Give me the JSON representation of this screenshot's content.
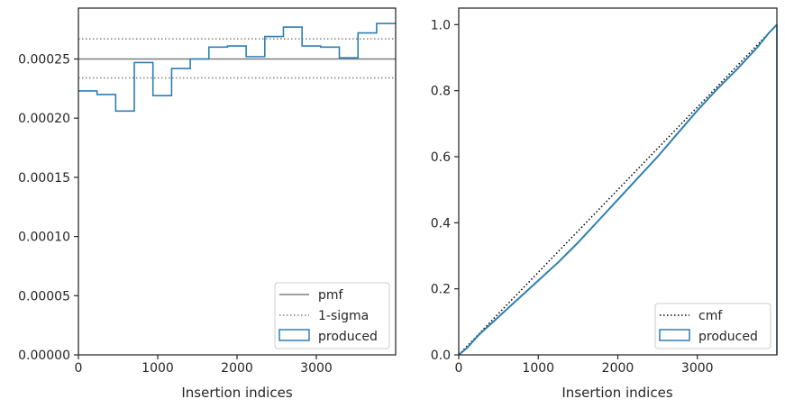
{
  "colors": {
    "produced": "#2f7fb2",
    "reference": "#7f7f7f",
    "cmf": "#000000",
    "axes": "#262626"
  },
  "chart_data": [
    {
      "type": "step-histogram",
      "xlabel": "Insertion indices",
      "ylabel": "",
      "xlim": [
        0,
        4000
      ],
      "ylim": [
        0,
        0.000293
      ],
      "xticks": [
        0,
        1000,
        2000,
        3000
      ],
      "xtick_labels": [
        "0",
        "1000",
        "2000",
        "3000"
      ],
      "yticks": [
        0,
        5e-05,
        0.0001,
        0.00015,
        0.0002,
        0.00025
      ],
      "ytick_labels": [
        "0.00000",
        "0.00005",
        "0.00010",
        "0.00015",
        "0.00020",
        "0.00025"
      ],
      "grid": false,
      "legend_position": "lower-right",
      "pmf": 0.00025,
      "sigma_upper": 0.000267,
      "sigma_lower": 0.000234,
      "bin_edges": [
        0,
        235,
        470,
        705,
        940,
        1175,
        1410,
        1645,
        1880,
        2115,
        2350,
        2585,
        2820,
        3055,
        3290,
        3525,
        3760,
        4000
      ],
      "counts": [
        0.000223,
        0.00022,
        0.000206,
        0.000247,
        0.000219,
        0.000242,
        0.00025,
        0.00026,
        0.000261,
        0.000252,
        0.000269,
        0.000277,
        0.000261,
        0.00026,
        0.000251,
        0.000272,
        0.00028
      ],
      "legend": [
        "pmf",
        "1-sigma",
        "produced"
      ]
    },
    {
      "type": "line",
      "xlabel": "Insertion indices",
      "ylabel": "",
      "xlim": [
        0,
        4000
      ],
      "ylim": [
        0,
        1.05
      ],
      "xticks": [
        0,
        1000,
        2000,
        3000
      ],
      "xtick_labels": [
        "0",
        "1000",
        "2000",
        "3000"
      ],
      "yticks": [
        0,
        0.2,
        0.4,
        0.6,
        0.8,
        1.0
      ],
      "ytick_labels": [
        "0.0",
        "0.2",
        "0.4",
        "0.6",
        "0.8",
        "1.0"
      ],
      "grid": false,
      "legend_position": "lower-right",
      "cmf": {
        "x": [
          0,
          4000
        ],
        "y": [
          0,
          1.0
        ]
      },
      "produced": {
        "x": [
          0,
          100,
          250,
          500,
          750,
          1000,
          1250,
          1500,
          1750,
          2000,
          2250,
          2500,
          2750,
          3000,
          3250,
          3500,
          3750,
          3900,
          4000
        ],
        "y": [
          0,
          0.02,
          0.06,
          0.115,
          0.17,
          0.225,
          0.28,
          0.34,
          0.405,
          0.47,
          0.535,
          0.6,
          0.67,
          0.74,
          0.805,
          0.865,
          0.93,
          0.975,
          1.0
        ]
      },
      "legend": [
        "cmf",
        "produced"
      ]
    }
  ]
}
